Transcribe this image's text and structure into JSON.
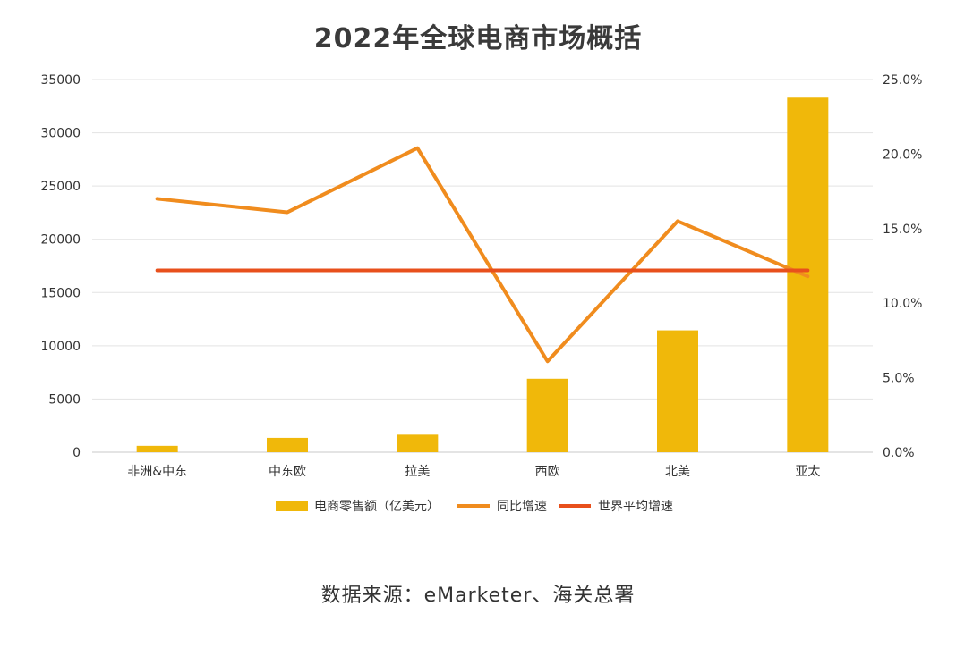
{
  "title": "2022年全球电商市场概括",
  "source": "数据来源：eMarketer、海关总署",
  "colors": {
    "bar": "#F0B80A",
    "growth_line": "#F08C1E",
    "world_avg_line": "#E8501C",
    "grid": "#E3E3E3"
  },
  "chart_data": {
    "type": "bar",
    "categories": [
      "非洲&中东",
      "中东欧",
      "拉美",
      "西欧",
      "北美",
      "亚太"
    ],
    "series": [
      {
        "name": "电商零售额（亿美元）",
        "type": "bar",
        "axis": "left",
        "values": [
          600,
          1350,
          1650,
          6900,
          11450,
          33300
        ]
      },
      {
        "name": "同比增速",
        "type": "line",
        "axis": "right",
        "values": [
          17.0,
          16.1,
          20.4,
          6.1,
          15.5,
          11.8
        ]
      },
      {
        "name": "世界平均增速",
        "type": "line",
        "axis": "right",
        "values": [
          12.2,
          12.2,
          12.2,
          12.2,
          12.2,
          12.2
        ]
      }
    ],
    "y_left": {
      "min": 0,
      "max": 35000,
      "ticks": [
        "0",
        "5000",
        "10000",
        "15000",
        "20000",
        "25000",
        "30000",
        "35000"
      ]
    },
    "y_right": {
      "min": 0,
      "max": 25,
      "ticks": [
        "0.0%",
        "5.0%",
        "10.0%",
        "15.0%",
        "20.0%",
        "25.0%"
      ]
    },
    "grid": true,
    "legend_position": "bottom"
  }
}
